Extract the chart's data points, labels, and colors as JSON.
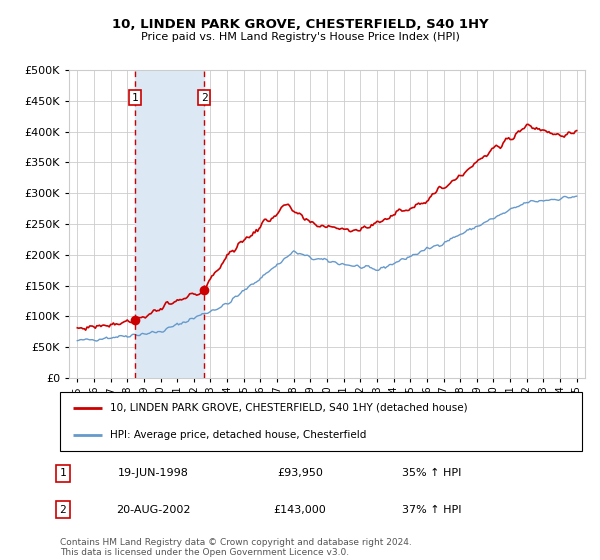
{
  "title": "10, LINDEN PARK GROVE, CHESTERFIELD, S40 1HY",
  "subtitle": "Price paid vs. HM Land Registry's House Price Index (HPI)",
  "legend_property": "10, LINDEN PARK GROVE, CHESTERFIELD, S40 1HY (detached house)",
  "legend_hpi": "HPI: Average price, detached house, Chesterfield",
  "footer": "Contains HM Land Registry data © Crown copyright and database right 2024.\nThis data is licensed under the Open Government Licence v3.0.",
  "purchase1_date": "19-JUN-1998",
  "purchase1_price": 93950,
  "purchase1_label": "35% ↑ HPI",
  "purchase2_date": "20-AUG-2002",
  "purchase2_price": 143000,
  "purchase2_label": "37% ↑ HPI",
  "purchase1_x": 1998.46,
  "purchase2_x": 2002.63,
  "ylim": [
    0,
    500000
  ],
  "xlim": [
    1994.5,
    2025.5
  ],
  "property_color": "#cc0000",
  "hpi_color": "#6699cc",
  "shade_color": "#dce9f5",
  "vline_color": "#cc0000",
  "background_color": "#ffffff",
  "grid_color": "#cccccc",
  "yticks": [
    0,
    50000,
    100000,
    150000,
    200000,
    250000,
    300000,
    350000,
    400000,
    450000,
    500000
  ],
  "xticks": [
    1995,
    1996,
    1997,
    1998,
    1999,
    2000,
    2001,
    2002,
    2003,
    2004,
    2005,
    2006,
    2007,
    2008,
    2009,
    2010,
    2011,
    2012,
    2013,
    2014,
    2015,
    2016,
    2017,
    2018,
    2019,
    2020,
    2021,
    2022,
    2023,
    2024,
    2025
  ],
  "fig_width": 6.0,
  "fig_height": 5.6,
  "dpi": 100
}
